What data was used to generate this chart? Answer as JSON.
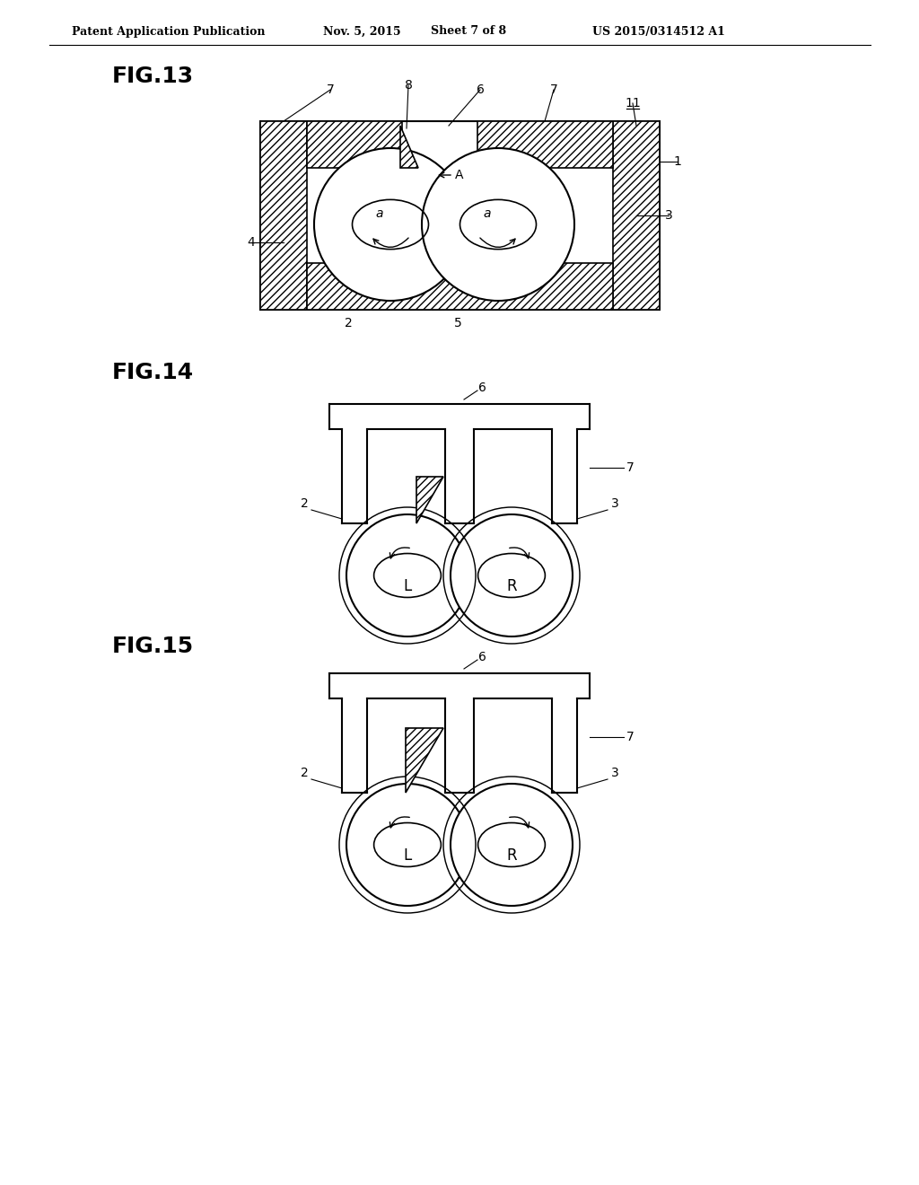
{
  "background_color": "#ffffff",
  "header_text": "Patent Application Publication",
  "header_date": "Nov. 5, 2015",
  "header_sheet": "Sheet 7 of 8",
  "header_patent": "US 2015/0314512 A1",
  "fig13_label": "FIG.13",
  "fig14_label": "FIG.14",
  "fig15_label": "FIG.15",
  "line_color": "#000000",
  "line_width": 1.5
}
